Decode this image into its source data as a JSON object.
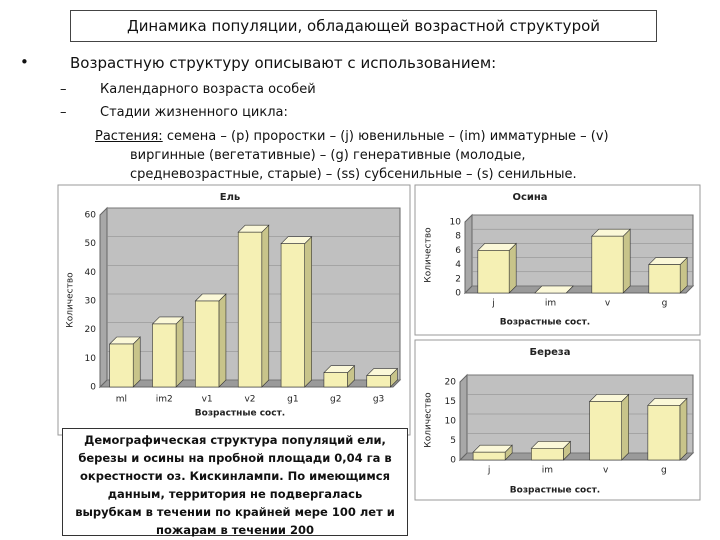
{
  "header": {
    "title": "Динамика популяции, обладающей возрастной структурой"
  },
  "bullet": {
    "text": "Возрастную структуру описывают с использованием:"
  },
  "items": [
    "Календарного возраста особей",
    "Стадии жизненного цикла:"
  ],
  "paragraph": {
    "label": "Растения:",
    "lines": [
      "семена – (p) проростки – (j) ювенильные – (im) имматурные – (v)",
      "виргинные (вегетативные) – (g) генеративные (молодые,",
      "средневозрастные, старые) – (ss) субсенильные – (s) сенильные."
    ]
  },
  "caption": {
    "lines": [
      "Демографическая структура популяций ели,",
      "березы и осины на пробной площади 0,04 га в",
      "окрестности оз. Кискинлампи. По имеющимся",
      "данным, территория не подвергалась",
      "вырубкам в течении по крайней мере 100 лет и",
      "пожарам в течении 200"
    ]
  },
  "chart_data": [
    {
      "type": "bar",
      "title": "Ель",
      "x_label": "Возрастные сост.",
      "y_label": "Количество",
      "categories": [
        "ml",
        "im2",
        "v1",
        "v2",
        "g1",
        "g2",
        "g3"
      ],
      "values": [
        15,
        22,
        30,
        54,
        50,
        5,
        4
      ],
      "color": "#f5f0b4",
      "ylim": [
        0,
        60
      ],
      "yticks": [
        0,
        10,
        20,
        30,
        40,
        50,
        60
      ]
    },
    {
      "type": "bar",
      "title": "Осина",
      "x_label": "Возрастные сост.",
      "y_label": "Количество",
      "categories": [
        "j",
        "im",
        "v",
        "g"
      ],
      "values": [
        6,
        0,
        8,
        4
      ],
      "color": "#f5f0b4",
      "ylim": [
        0,
        10
      ],
      "yticks": [
        0,
        2,
        4,
        6,
        8,
        10
      ]
    },
    {
      "type": "bar",
      "title": "Береза",
      "x_label": "Возрастные сост.",
      "y_label": "Количество",
      "categories": [
        "j",
        "im",
        "v",
        "g"
      ],
      "values": [
        2,
        3,
        15,
        14
      ],
      "color": "#f5f0b4",
      "ylim": [
        0,
        20
      ],
      "yticks": [
        0,
        5,
        10,
        15,
        20
      ]
    }
  ]
}
